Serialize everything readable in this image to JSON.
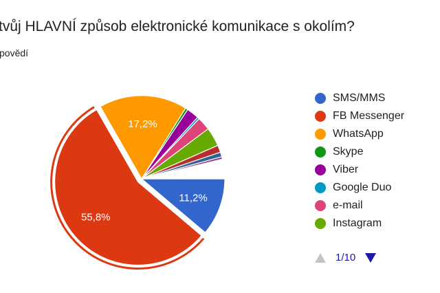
{
  "question": {
    "title": "tvůj HLAVNÍ způsob elektronické komunikace s okolím?",
    "responses_label": "povědí"
  },
  "legend_pager": {
    "text": "1/10"
  },
  "chart_data": {
    "type": "pie",
    "title": "",
    "exploded_slice": "FB Messenger",
    "slices": [
      {
        "label": "SMS/MMS",
        "value": 11.2,
        "color": "#3366cc",
        "value_label": "11,2%"
      },
      {
        "label": "FB Messenger",
        "value": 55.8,
        "color": "#dc3912",
        "value_label": "55,8%"
      },
      {
        "label": "WhatsApp",
        "value": 17.2,
        "color": "#ff9900",
        "value_label": "17,2%"
      },
      {
        "label": "Skype",
        "value": 0.5,
        "color": "#109618",
        "value_label": ""
      },
      {
        "label": "Viber",
        "value": 2.4,
        "color": "#990099",
        "value_label": ""
      },
      {
        "label": "Google Duo",
        "value": 0.4,
        "color": "#0099c6",
        "value_label": ""
      },
      {
        "label": "e-mail",
        "value": 2.6,
        "color": "#dd4477",
        "value_label": ""
      },
      {
        "label": "Instagram",
        "value": 3.7,
        "color": "#66aa00",
        "value_label": ""
      },
      {
        "label": "",
        "value": 1.4,
        "color": "#b82e2e",
        "value_label": ""
      },
      {
        "label": "",
        "value": 0.9,
        "color": "#316395",
        "value_label": ""
      },
      {
        "label": "",
        "value": 0.5,
        "color": "#994499",
        "value_label": ""
      },
      {
        "label": "",
        "value": 3.8,
        "color": "#ffffff",
        "value_label": ""
      }
    ],
    "legend": {
      "position": "right",
      "entries": [
        "SMS/MMS",
        "FB Messenger",
        "WhatsApp",
        "Skype",
        "Viber",
        "Google Duo",
        "e-mail",
        "Instagram"
      ]
    }
  }
}
